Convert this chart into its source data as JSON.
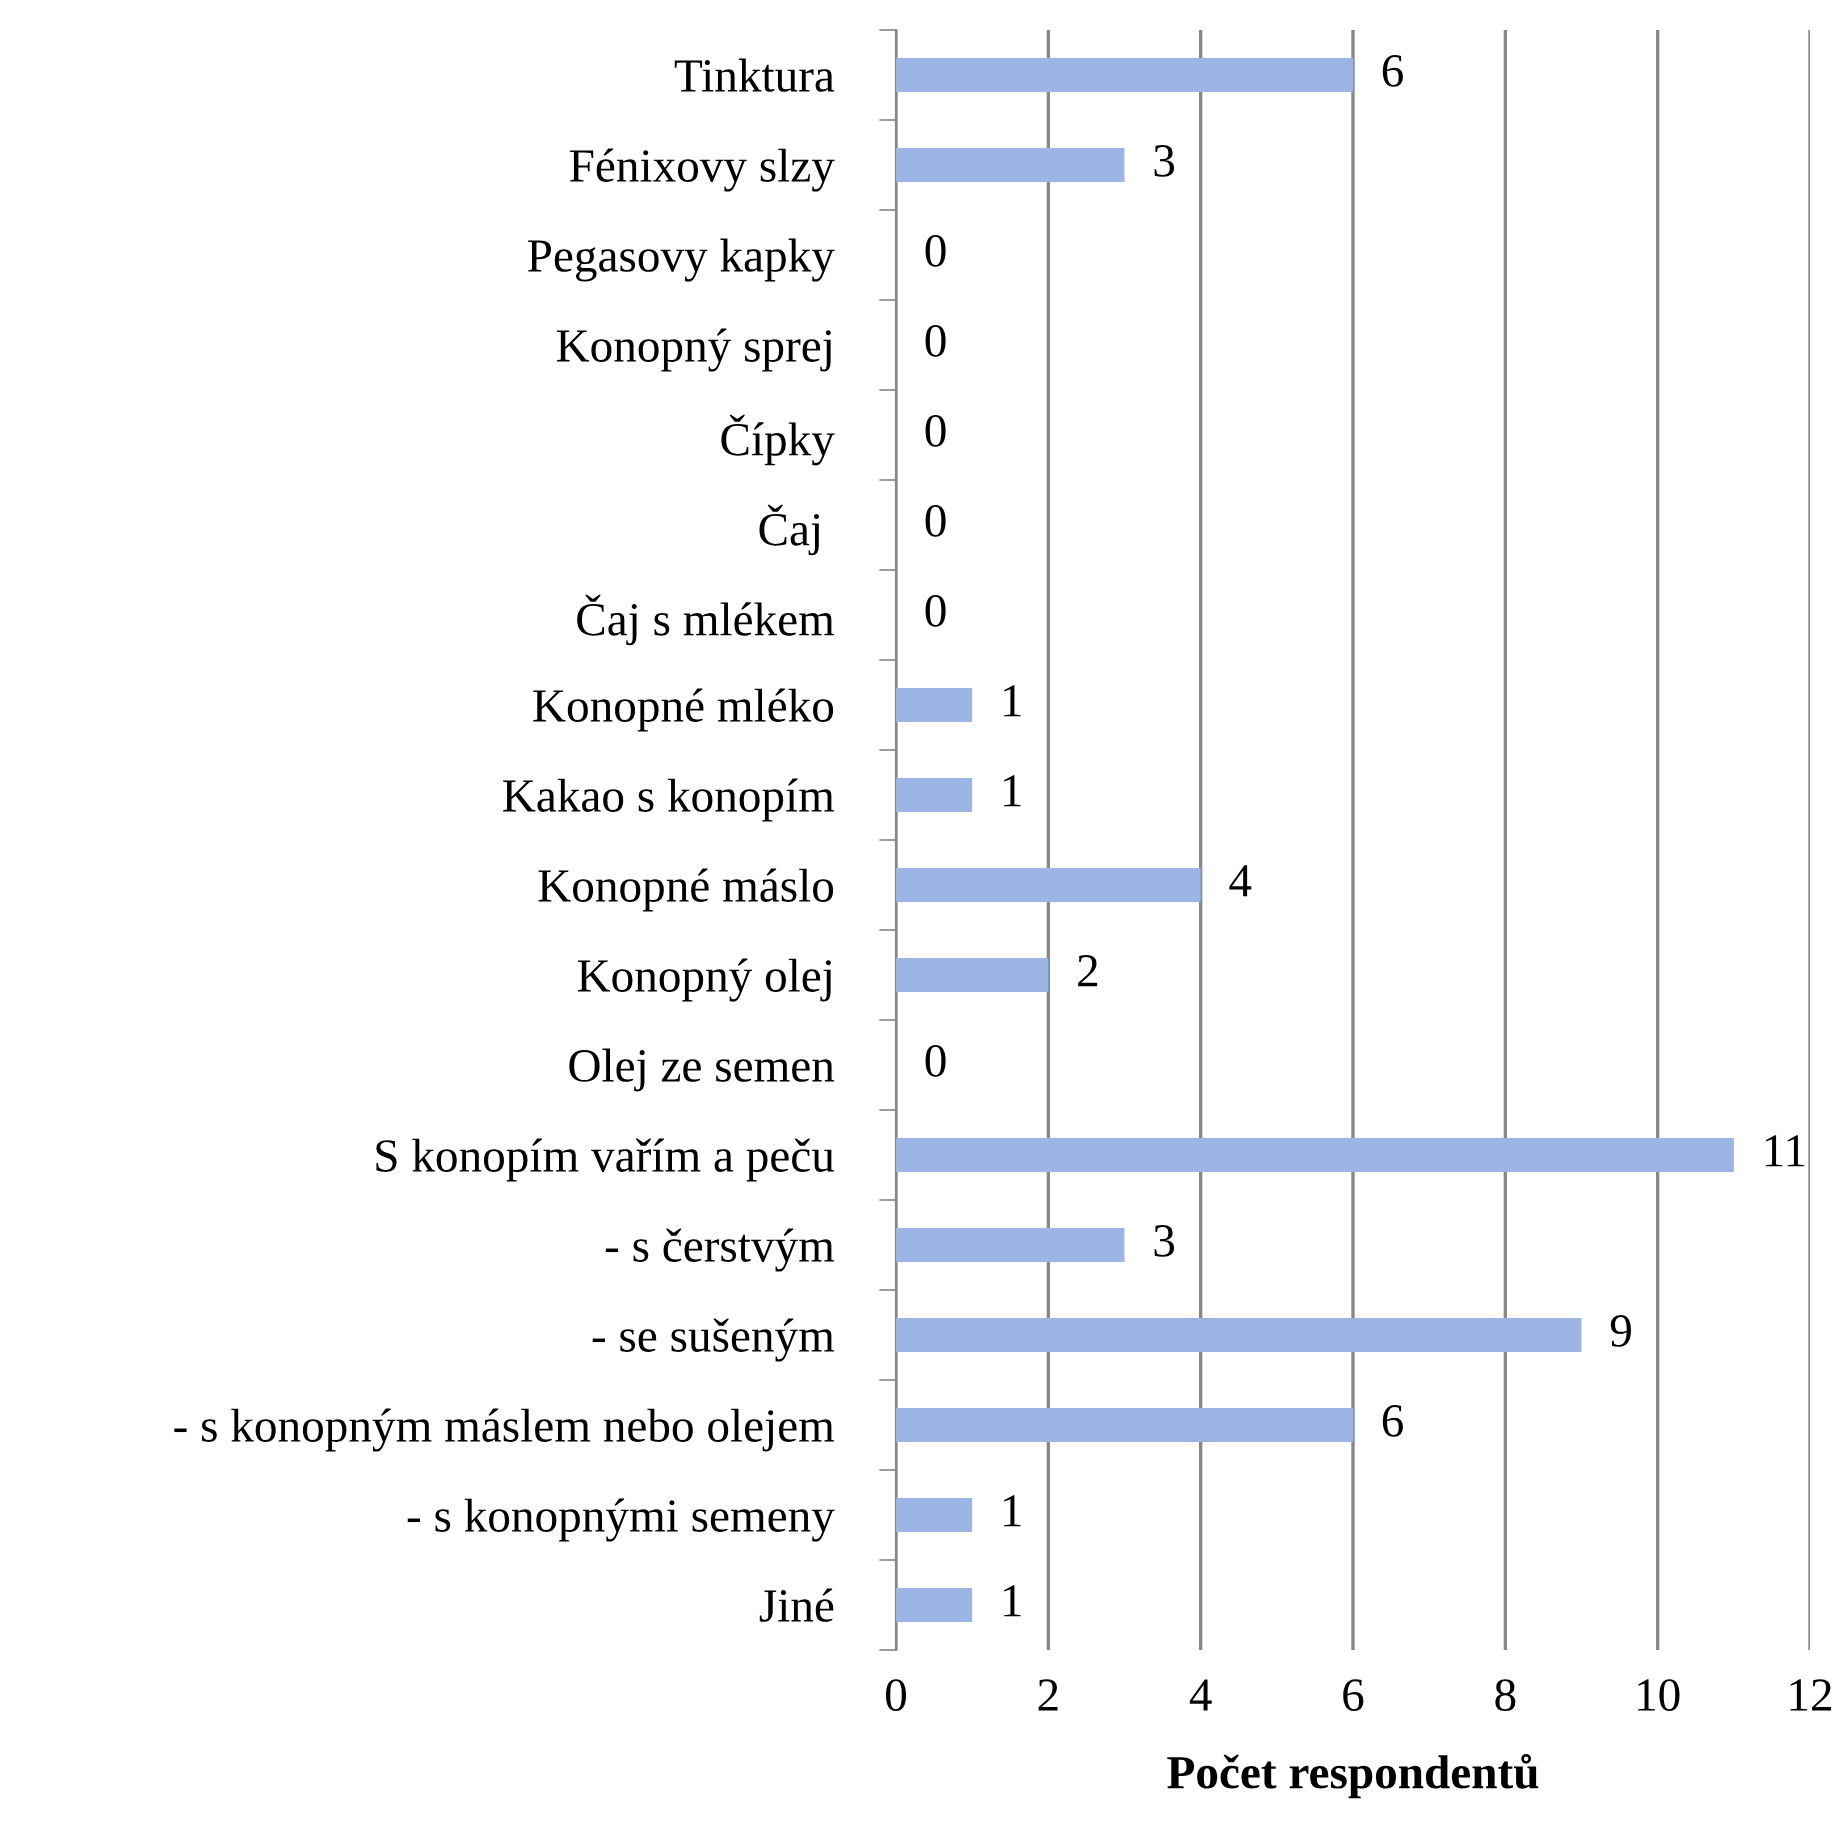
{
  "chart_data": {
    "type": "bar",
    "orientation": "horizontal",
    "xlabel": "Počet respondentů",
    "categories": [
      "Tinktura",
      "Fénixovy slzy",
      "Pegasovy kapky",
      "Konopný sprej",
      "Čípky",
      "Čaj ",
      "Čaj s mlékem",
      "Konopné mléko",
      "Kakao s konopím",
      "Konopné máslo",
      "Konopný olej",
      "Olej ze semen",
      "S konopím vařím a peču",
      "- s čerstvým",
      "- se sušeným",
      "- s konopným máslem nebo olejem",
      "- s konopnými semeny",
      "Jiné"
    ],
    "values": [
      6,
      3,
      0,
      0,
      0,
      0,
      0,
      1,
      1,
      4,
      2,
      0,
      11,
      3,
      9,
      6,
      1,
      1
    ],
    "color": "#9db5e4",
    "xlim": [
      0,
      12
    ],
    "xticks": [
      0,
      2,
      4,
      6,
      8,
      10,
      12
    ],
    "grid": "x",
    "data_labels": true
  }
}
